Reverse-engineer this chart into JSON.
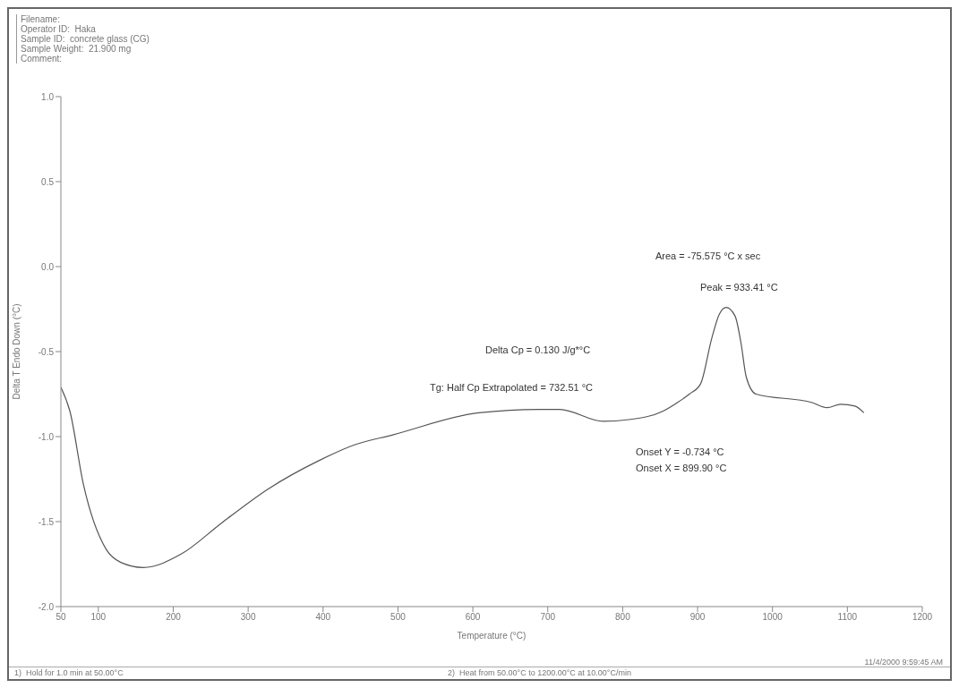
{
  "chart_data": {
    "type": "line",
    "xlabel": "Temperature (°C)",
    "ylabel": "Delta T Endo Down (°C)",
    "xlim": [
      50,
      1200
    ],
    "xticks": [
      50,
      100,
      200,
      300,
      400,
      500,
      600,
      700,
      800,
      900,
      1000,
      1100,
      1200
    ],
    "ylim": [
      -2.0,
      1.0
    ],
    "yticks": [
      {
        "value": 1,
        "label": "1.0"
      },
      {
        "value": 0.5,
        "label": "0.5"
      },
      {
        "value": 0,
        "label": "0.0"
      },
      {
        "value": -0.5,
        "label": "-0.5"
      },
      {
        "value": -1,
        "label": "-1.0"
      },
      {
        "value": -1.5,
        "label": "-1.5"
      },
      {
        "value": -2,
        "label": "-2.0"
      }
    ],
    "grid": false,
    "marker": "none",
    "line_style": "solid",
    "series": [
      {
        "color": "#555555",
        "x": [
          50,
          62,
          80,
          110,
          130,
          160,
          211,
          264,
          326,
          395,
          441,
          493,
          608,
          689,
          716,
          774,
          808,
          854,
          873,
          889,
          904,
          919,
          929,
          938,
          950,
          958,
          965,
          978,
          1053,
          1073,
          1091,
          1110,
          1122
        ],
        "values": [
          -0.71,
          -0.85,
          -1.28,
          -1.66,
          -1.74,
          -1.77,
          -1.69,
          -1.51,
          -1.31,
          -1.14,
          -1.05,
          -0.99,
          -0.86,
          -0.84,
          -0.84,
          -0.91,
          -0.9,
          -0.85,
          -0.8,
          -0.75,
          -0.69,
          -0.42,
          -0.28,
          -0.24,
          -0.29,
          -0.45,
          -0.65,
          -0.75,
          -0.8,
          -0.83,
          -0.81,
          -0.82,
          -0.86
        ]
      }
    ],
    "annotations": [
      "Area = -75.575 °C x sec",
      "Peak = 933.41 °C",
      "Delta Cp = 0.130 J/g*°C",
      "Tg: Half Cp Extrapolated = 732.51 °C",
      "Onset Y = -0.734 °C",
      "Onset X = 899.90 °C",
      "Filename:",
      "Operator ID:  Haka",
      "Sample ID:  concrete glass (CG)",
      "Sample Weight:  21.900 mg",
      "Comment:",
      "1)  Hold for 1.0 min at 50.00°C",
      "2)  Heat from 50.00°C to 1200.00°C at 10.00°C/min",
      "11/4/2000 9:59:45 AM"
    ]
  }
}
